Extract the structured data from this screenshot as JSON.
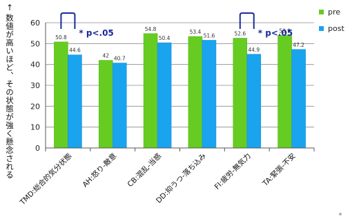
{
  "chart_data": {
    "type": "bar",
    "categories": [
      "TMD:総合的気分状態",
      "AH:怒り-敵意",
      "CB:混乱-当惑",
      "DD:抑うつ-落ち込み",
      "FI:疲労-無気力",
      "TA:緊張-不安"
    ],
    "series": [
      {
        "name": "pre",
        "values": [
          50.8,
          42,
          54.8,
          53.4,
          52.6,
          53.9
        ],
        "color": "#66cc22"
      },
      {
        "name": "post",
        "values": [
          44.6,
          40.7,
          50.4,
          51.6,
          44.9,
          47.2
        ],
        "color": "#1aa3ee"
      }
    ],
    "ylim": [
      0,
      60
    ],
    "yticks": [
      0,
      10,
      20,
      30,
      40,
      50,
      60
    ],
    "ylabel": "数値が高いほど、その状態が強く懸念される",
    "ylabel_arrow": "↑",
    "grid": true,
    "legend_position": "top-right",
    "annotations": [
      {
        "category": "TMD:総合的気分状態",
        "text": "* p<.05",
        "color": "#1a2a9a"
      },
      {
        "category": "FI:疲労-無気力",
        "text": "* p<.05",
        "color": "#1a2a9a"
      }
    ]
  }
}
